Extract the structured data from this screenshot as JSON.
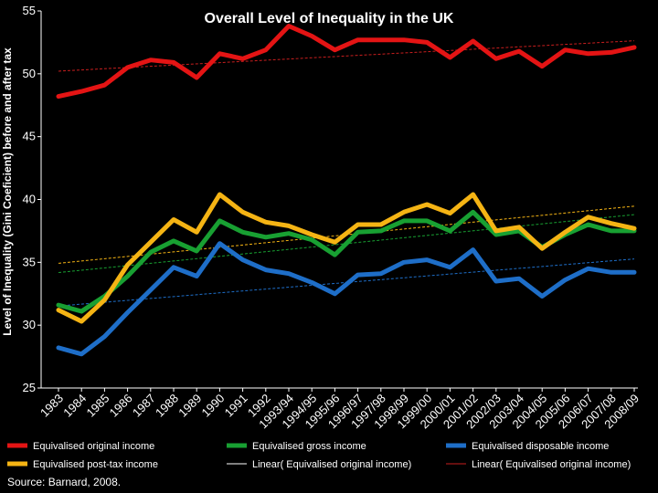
{
  "chart_data": {
    "type": "line",
    "title": "Overall Level of Inequality in the UK",
    "xlabel": "",
    "ylabel": "Level of Inequality (Gini Coeficient) before and after tax",
    "ylim": [
      25,
      55
    ],
    "yticks": [
      25,
      30,
      35,
      40,
      45,
      50,
      55
    ],
    "categories": [
      "1983",
      "1984",
      "1985",
      "1986",
      "1987",
      "1988",
      "1989",
      "1990",
      "1991",
      "1992",
      "1993/94",
      "1994/95",
      "1995/96",
      "1996/97",
      "1997/98",
      "1998/99",
      "1999/00",
      "2000/01",
      "2001/02",
      "2002/03",
      "2003/04",
      "2004/05",
      "2005/06",
      "2006/07",
      "2007/08",
      "2008/09"
    ],
    "series": [
      {
        "name": "Equivalised original income",
        "color": "#e41414",
        "values": [
          48.2,
          48.6,
          49.1,
          50.5,
          51.1,
          50.9,
          49.7,
          51.6,
          51.2,
          51.9,
          53.8,
          53.0,
          51.9,
          52.7,
          52.7,
          52.7,
          52.5,
          51.3,
          52.6,
          51.2,
          51.8,
          50.6,
          51.9,
          51.6,
          51.7,
          52.1
        ]
      },
      {
        "name": "Equivalised gross income",
        "color": "#18a032",
        "values": [
          31.6,
          31.1,
          32.3,
          33.9,
          35.8,
          36.7,
          35.9,
          38.3,
          37.4,
          37.0,
          37.3,
          36.8,
          35.6,
          37.4,
          37.5,
          38.3,
          38.3,
          37.5,
          39.0,
          37.2,
          37.5,
          36.2,
          37.2,
          38.0,
          37.5,
          37.5
        ]
      },
      {
        "name": "Equivalised disposable income",
        "color": "#1e6ec8",
        "values": [
          28.2,
          27.7,
          29.1,
          31.0,
          32.8,
          34.6,
          33.9,
          36.5,
          35.2,
          34.4,
          34.1,
          33.4,
          32.5,
          34.0,
          34.1,
          35.0,
          35.2,
          34.6,
          36.0,
          33.5,
          33.7,
          32.3,
          33.6,
          34.5,
          34.2,
          34.2
        ]
      },
      {
        "name": "Equivalised post-tax income",
        "color": "#f5b414",
        "values": [
          31.2,
          30.3,
          32.0,
          34.8,
          36.6,
          38.4,
          37.4,
          40.4,
          39.0,
          38.2,
          37.9,
          37.2,
          36.6,
          38.0,
          38.0,
          39.0,
          39.6,
          38.9,
          40.4,
          37.5,
          37.8,
          36.1,
          37.4,
          38.6,
          38.1,
          37.7
        ]
      }
    ],
    "trendlines": [
      {
        "name": "Linear( Equivalised original income)",
        "color": "#c81e1e",
        "series": 0
      },
      {
        "name": "",
        "color": "#18a032",
        "series": 1
      },
      {
        "name": "",
        "color": "#1e6ec8",
        "series": 2
      },
      {
        "name": "",
        "color": "#f5b414",
        "series": 3
      }
    ],
    "legend_extra": [
      {
        "name": "Linear( Equivalised original income)",
        "color": "#ffffff"
      }
    ],
    "source": "Source: Barnard, 2008."
  }
}
